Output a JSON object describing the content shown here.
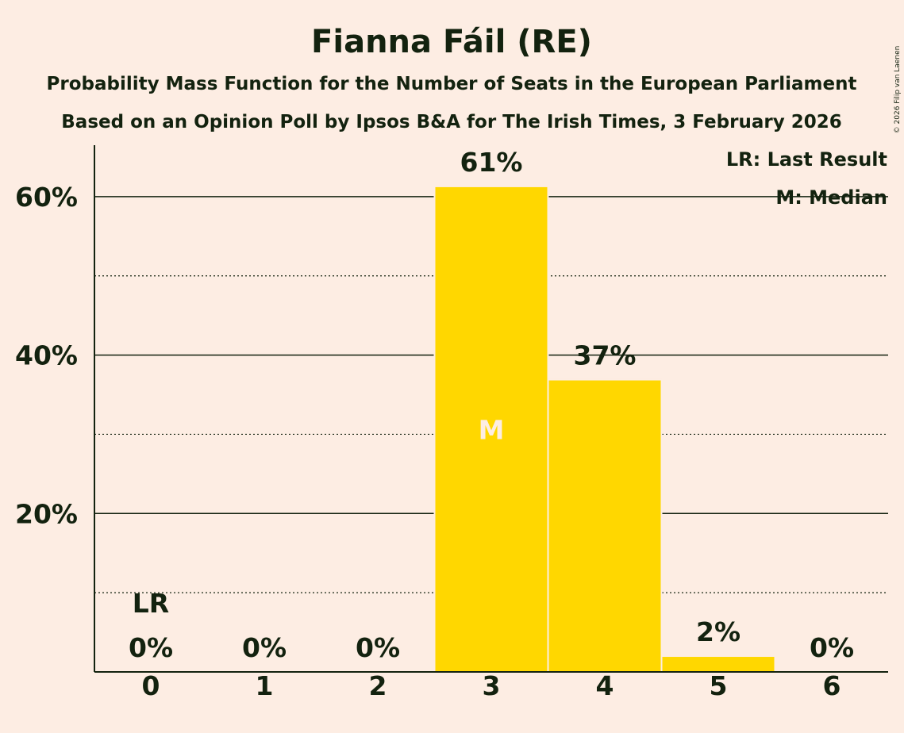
{
  "chart_data": {
    "type": "bar",
    "title": "Fianna Fáil (RE)",
    "subtitle": "Probability Mass Function for the Number of Seats in the European Parliament",
    "subtitle2": "Based on an Opinion Poll by Ipsos B&A for The Irish Times, 3 February 2026",
    "copyright": "© 2026 Filip van Laenen",
    "categories": [
      "0",
      "1",
      "2",
      "3",
      "4",
      "5",
      "6"
    ],
    "values": [
      0,
      0,
      0,
      61.2,
      36.8,
      1.9,
      0
    ],
    "value_labels": [
      "0%",
      "0%",
      "0%",
      "61%",
      "37%",
      "2%",
      "0%"
    ],
    "ylim": [
      0,
      66.5
    ],
    "major_ticks": [
      20,
      40,
      60
    ],
    "minor_ticks": [
      10,
      30,
      50
    ],
    "ytick_labels": [
      "20%",
      "40%",
      "60%"
    ],
    "last_result_index": 0,
    "last_result_marker": "LR",
    "median_index": 3,
    "median_marker": "M",
    "legend": [
      "LR: Last Result",
      "M: Median"
    ],
    "legend_position": "top-right",
    "bar_color": "#FFD700",
    "background_color": "#FDEDE3",
    "text_color": "#13220F",
    "median_text_color": "#FDEDE3"
  }
}
